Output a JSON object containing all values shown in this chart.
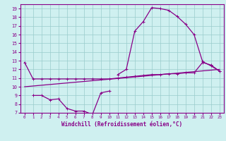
{
  "xlabel": "Windchill (Refroidissement éolien,°C)",
  "color": "#880088",
  "bg_color": "#cff0f0",
  "grid_color": "#99cccc",
  "ylim": [
    7,
    19.5
  ],
  "xlim": [
    -0.5,
    23.5
  ],
  "yticks": [
    7,
    8,
    9,
    10,
    11,
    12,
    13,
    14,
    15,
    16,
    17,
    18,
    19
  ],
  "xticks": [
    0,
    1,
    2,
    3,
    4,
    5,
    6,
    7,
    8,
    9,
    10,
    11,
    12,
    13,
    14,
    15,
    16,
    17,
    18,
    19,
    20,
    21,
    22,
    23
  ],
  "line_hump": [
    null,
    null,
    null,
    null,
    null,
    null,
    null,
    null,
    null,
    null,
    null,
    11.4,
    12.0,
    16.4,
    17.5,
    19.1,
    19.0,
    18.8,
    18.1,
    17.2,
    16.0,
    12.9,
    12.4,
    11.8
  ],
  "line_flat": [
    12.8,
    10.9,
    10.9,
    10.9,
    10.9,
    10.9,
    10.9,
    10.9,
    10.9,
    10.9,
    10.9,
    11.0,
    11.1,
    11.2,
    11.3,
    11.4,
    11.4,
    11.5,
    11.5,
    11.6,
    11.6,
    12.8,
    12.5,
    11.8
  ],
  "line_dip": [
    null,
    9.0,
    9.0,
    8.5,
    8.6,
    7.5,
    7.2,
    7.2,
    6.8,
    9.3,
    9.5,
    null,
    null,
    null,
    null,
    null,
    null,
    null,
    null,
    null,
    null,
    null,
    null,
    null
  ],
  "line_trend_x": [
    0,
    23
  ],
  "line_trend_y": [
    10.0,
    12.0
  ]
}
